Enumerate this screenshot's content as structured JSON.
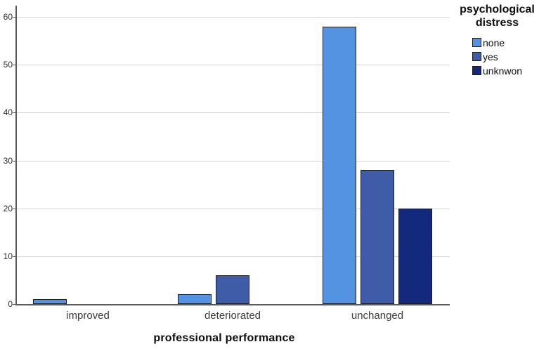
{
  "chart_data": {
    "type": "bar",
    "title": "",
    "xlabel": "professional performance",
    "ylabel": "",
    "categories": [
      "improved",
      "deteriorated",
      "unchanged"
    ],
    "series": [
      {
        "name": "none",
        "color": "#5493E2",
        "values": [
          1,
          2,
          58
        ]
      },
      {
        "name": "yes",
        "color": "#3F5CA9",
        "values": [
          0,
          6,
          28
        ]
      },
      {
        "name": "unknwon",
        "color": "#13297B",
        "values": [
          0,
          0,
          20
        ]
      }
    ],
    "ylim": [
      0,
      60
    ],
    "yticks": [
      0,
      10,
      20,
      30,
      40,
      50,
      60
    ],
    "grid": true,
    "legend_title": "psychological distress",
    "legend_position": "top-right",
    "colors": {
      "bar_border": "#1c1c1c",
      "gridline": "#d3d3d3",
      "axis": "#5a5a5a",
      "tick_text": "#2e2e2e",
      "label_text": "#3a3a3a"
    }
  }
}
